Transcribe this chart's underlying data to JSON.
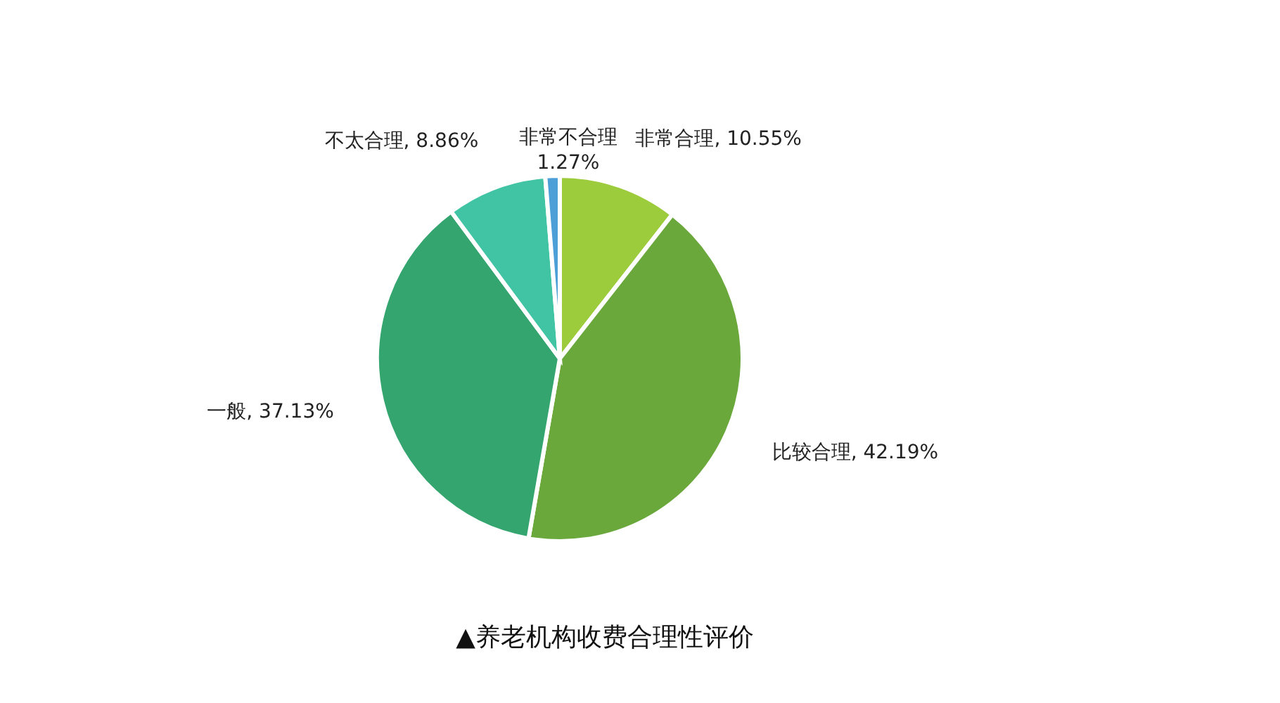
{
  "chart_data": {
    "type": "pie",
    "title": "▲养老机构收费合理性评价",
    "categories": [
      "非常合理",
      "比较合理",
      "一般",
      "不太合理",
      "非常不合理"
    ],
    "values": [
      10.55,
      42.19,
      37.13,
      8.86,
      1.27
    ],
    "colors": [
      "#9ccb3c",
      "#6aa83c",
      "#34a56e",
      "#40c4a4",
      "#4d9fd8"
    ],
    "value_labels": [
      "10.55%",
      "42.19%",
      "37.13%",
      "8.86%",
      "1.27%"
    ],
    "legend": false
  }
}
